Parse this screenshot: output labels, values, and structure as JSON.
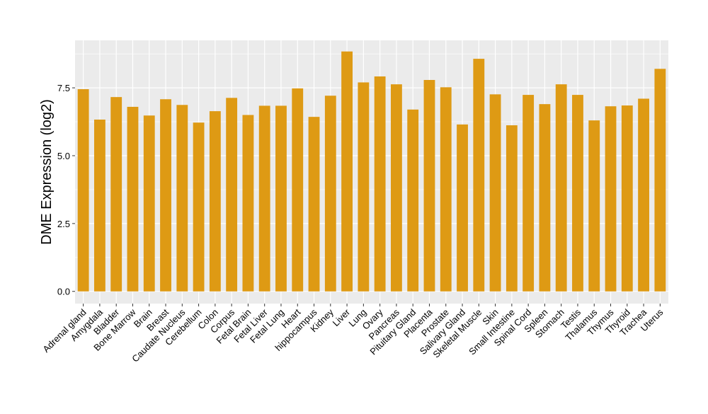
{
  "chart_data": {
    "type": "bar",
    "title": "",
    "xlabel": "",
    "ylabel": "DME Expression (log2)",
    "ylim": [
      -0.45,
      9.25
    ],
    "yticks": [
      0.0,
      2.5,
      5.0,
      7.5
    ],
    "ytick_labels": [
      "0.0",
      "2.5",
      "5.0",
      "7.5"
    ],
    "grid": true,
    "legend": "none",
    "colors": {
      "bar": "#DE9A14",
      "panel": "#EBEBEB",
      "gridline": "#FFFFFF",
      "text": "#000000",
      "tick": "#333333"
    },
    "categories": [
      "Adrenal gland",
      "Amygdala",
      "Bladder",
      "Bone Marrow",
      "Brain",
      "Breast",
      "Caudate Nucleus",
      "Cerebellum",
      "Colon",
      "Corpus",
      "Fetal Brain",
      "Fetal Liver",
      "Fetal Lung",
      "Heart",
      "hippocampus",
      "Kidney",
      "Liver",
      "Lung",
      "Ovary",
      "Pancreas",
      "Pituitary Gland",
      "Placenta",
      "Prostate",
      "Salivary Gland",
      "Skeletal Muscle",
      "Skin",
      "Small Intestine",
      "Spinal Cord",
      "Spleen",
      "Stomach",
      "Testis",
      "Thalamus",
      "Thymus",
      "Thyroid",
      "Trachea",
      "Uterus"
    ],
    "values": [
      7.45,
      6.33,
      7.16,
      6.8,
      6.48,
      7.08,
      6.87,
      6.22,
      6.64,
      7.13,
      6.5,
      6.84,
      6.84,
      7.48,
      6.43,
      7.21,
      8.84,
      7.7,
      7.92,
      7.63,
      6.7,
      7.79,
      7.52,
      6.15,
      8.57,
      7.26,
      6.12,
      7.24,
      6.9,
      7.63,
      7.24,
      6.3,
      6.82,
      6.85,
      7.1,
      8.2
    ]
  }
}
